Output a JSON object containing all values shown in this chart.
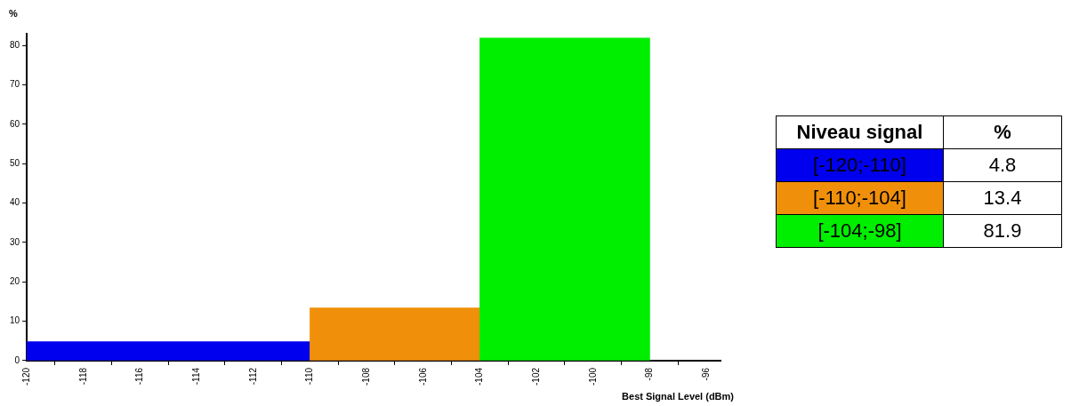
{
  "chart_data": {
    "type": "histogram",
    "xlabel": "Best Signal Level (dBm)",
    "ylabel": "%",
    "legend_title": "Niveau signal",
    "bins": [
      -120,
      -110,
      -104,
      -98
    ],
    "values": [
      4.8,
      13.4,
      81.9
    ],
    "colors": [
      "#0000ee",
      "#f0900a",
      "#00ee00"
    ],
    "categories": [
      "[-120;-110]",
      "[-110;-104]",
      "[-104;-98]"
    ],
    "xlim": [
      -120,
      -95.5
    ],
    "xticks": [
      -120,
      -118,
      -116,
      -114,
      -112,
      -110,
      -108,
      -106,
      -104,
      -102,
      -100,
      -98,
      -96
    ],
    "ylim": [
      0,
      83
    ],
    "yticks": [
      0,
      10,
      20,
      30,
      40,
      50,
      60,
      70,
      80
    ],
    "annotations": [
      "4.8",
      "13.4",
      "81.9"
    ],
    "grid": false
  }
}
